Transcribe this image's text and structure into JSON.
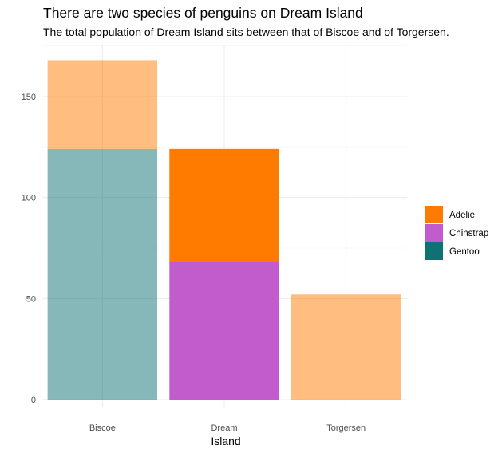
{
  "chart_data": {
    "type": "bar",
    "stacked": true,
    "title": "There are two species of penguins on Dream Island",
    "subtitle": "The total population of Dream Island sits between that of Biscoe and of Torgersen.",
    "xlabel": "Island",
    "ylabel": "",
    "categories": [
      "Biscoe",
      "Dream",
      "Torgersen"
    ],
    "series": [
      {
        "name": "Gentoo",
        "color": "#0f7173",
        "values": [
          124,
          0,
          0
        ]
      },
      {
        "name": "Chinstrap",
        "color": "#c25ccc",
        "values": [
          0,
          68,
          0
        ]
      },
      {
        "name": "Adelie",
        "color": "#ff7b00",
        "values": [
          44,
          56,
          52
        ]
      }
    ],
    "highlight_category": "Dream",
    "muted_opacity": 0.5,
    "legend_order": [
      "Adelie",
      "Chinstrap",
      "Gentoo"
    ],
    "ylim": [
      0,
      175
    ],
    "yticks": [
      0,
      50,
      100,
      150
    ],
    "grid": true,
    "legend_position": "right"
  }
}
